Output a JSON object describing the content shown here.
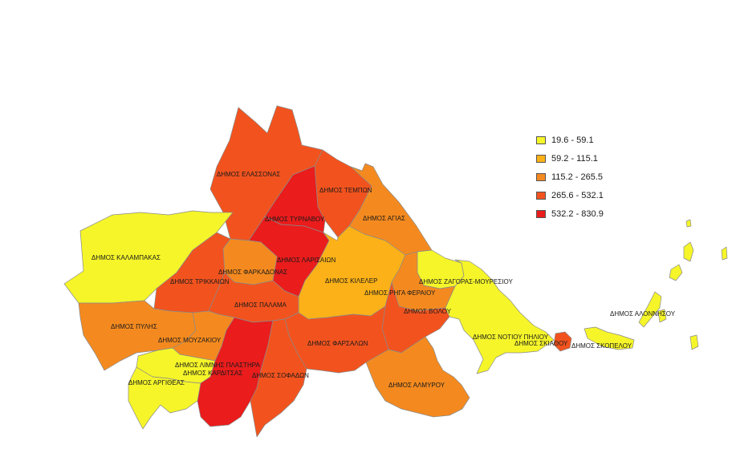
{
  "legend": [
    {
      "range": "19.6 - 59.1",
      "color": "#f5f52a"
    },
    {
      "range": "59.2 - 115.1",
      "color": "#fbb117"
    },
    {
      "range": "115.2 - 265.5",
      "color": "#f48a1f"
    },
    {
      "range": "265.6 - 532.1",
      "color": "#f2531e"
    },
    {
      "range": "532.2 - 830.9",
      "color": "#ea1c1c"
    }
  ],
  "municipalities": {
    "elassona": "ΔΗΜΟΣ ΕΛΑΣΣΟΝΑΣ",
    "tempon": "ΔΗΜΟΣ ΤΕΜΠΩΝ",
    "tyrnavou": "ΔΗΜΟΣ ΤΥΡΝΑΒΟΥ",
    "agias": "ΔΗΜΟΣ ΑΓΙΑΣ",
    "kalampakas": "ΔΗΜΟΣ ΚΑΛΑΜΠΑΚΑΣ",
    "larisaion": "ΔΗΜΟΣ ΛΑΡΙΣΑΙΩΝ",
    "farkadonas": "ΔΗΜΟΣ ΦΑΡΚΑΔΟΝΑΣ",
    "trikkaion": "ΔΗΜΟΣ ΤΡΙΚΚΑΙΩΝ",
    "kileler": "ΔΗΜΟΣ ΚΙΛΕΛΕΡ",
    "zagoras": "ΔΗΜΟΣ ΖΑΓΟΡΑΣ-ΜΟΥΡΕΣΙΟΥ",
    "riga": "ΔΗΜΟΣ ΡΗΓΑ ΦΕΡΑΙΟΥ",
    "palama": "ΔΗΜΟΣ ΠΑΛΑΜΑ",
    "volou": "ΔΗΜΟΣ ΒΟΛΟΥ",
    "pylis": "ΔΗΜΟΣ ΠΥΛΗΣ",
    "notiou_piliou": "ΔΗΜΟΣ ΝΟΤΙΟΥ ΠΗΛΙΟΥ",
    "alonnisou": "ΔΗΜΟΣ ΑΛΟΝΝΗΣΟΥ",
    "mouzakiou": "ΔΗΜΟΣ ΜΟΥΖΑΚΙΟΥ",
    "farsalon": "ΔΗΜΟΣ ΦΑΡΣΑΛΩΝ",
    "skiathou": "ΔΗΜΟΣ ΣΚΙΑΘΟΥ",
    "skopelou": "ΔΗΜΟΣ ΣΚΟΠΕΛΟΥ",
    "plastira": "ΔΗΜΟΣ ΛΙΜΝΗΣ ΠΛΑΣΤΗΡΑ",
    "karditsas": "ΔΗΜΟΣ ΚΑΡΔΙΤΣΑΣ",
    "sofadon": "ΔΗΜΟΣ ΣΟΦΑΔΩΝ",
    "argitheas": "ΔΗΜΟΣ ΑΡΓΙΘΕΑΣ",
    "almyrou": "ΔΗΜΟΣ ΑΛΜΥΡΟΥ"
  },
  "region_class": {
    "elassona": 3,
    "tempon": 3,
    "tyrnavou": 4,
    "agias": 2,
    "kalampakas": 0,
    "larisaion": 4,
    "farkadonas": 2,
    "trikkaion": 3,
    "kileler": 1,
    "zagoras": 0,
    "riga": 2,
    "palama": 3,
    "volou": 3,
    "pylis": 2,
    "notiou_piliou": 0,
    "alonnisou": 0,
    "mouzakiou": 2,
    "farsalon": 3,
    "skiathou": 3,
    "skopelou": 0,
    "plastira": 0,
    "karditsas": 4,
    "sofadon": 3,
    "argitheas": 0,
    "almyrou": 2
  }
}
